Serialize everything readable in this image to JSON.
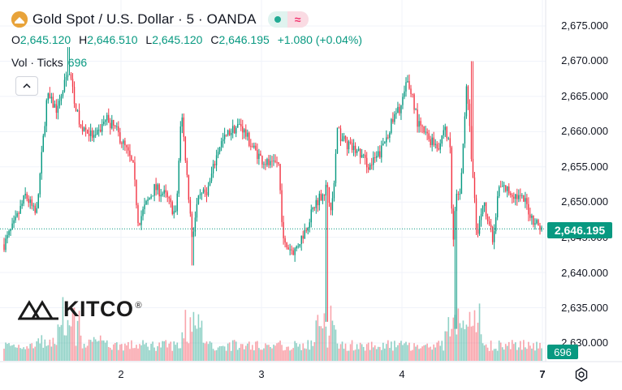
{
  "header": {
    "title": "Gold Spot / U.S. Dollar · 5 · OANDA",
    "ohlc": {
      "open_label": "O",
      "open": "2,645.120",
      "high_label": "H",
      "high": "2,646.510",
      "low_label": "L",
      "low": "2,645.120",
      "close_label": "C",
      "close": "2,646.195",
      "change": "+1.080 (+0.04%)"
    },
    "volume": {
      "label": "Vol · Ticks",
      "value": "696"
    }
  },
  "logo": {
    "text": "KITCO",
    "registered": "®"
  },
  "icons": [
    "gold-coin-icon",
    "collapse-up-icon",
    "settings-icon",
    "kitco-logo-icon"
  ],
  "colors": {
    "up": "#089981",
    "down": "#f23645",
    "bg": "#ffffff",
    "grid": "#f0f3fa"
  },
  "chart_data": {
    "type": "candlestick",
    "x_ticks": [
      "2",
      "3",
      "4",
      "7"
    ],
    "y_ticks": [
      "2,675.000",
      "2,670.000",
      "2,665.000",
      "2,660.000",
      "2,655.000",
      "2,650.000",
      "2,645.000",
      "2,640.000",
      "2,635.000",
      "2,630.000"
    ],
    "ylim": [
      2628,
      2677
    ],
    "last_price": "2,646.195",
    "last_volume": "696",
    "price_path": [
      [
        0,
        2644.0
      ],
      [
        0.02,
        2647.0
      ],
      [
        0.04,
        2651.0
      ],
      [
        0.06,
        2648.0
      ],
      [
        0.08,
        2665.0
      ],
      [
        0.1,
        2663.0
      ],
      [
        0.12,
        2669.0
      ],
      [
        0.14,
        2661.0
      ],
      [
        0.17,
        2659.0
      ],
      [
        0.19,
        2662.0
      ],
      [
        0.21,
        2660.0
      ],
      [
        0.23,
        2657.0
      ],
      [
        0.24,
        2655.0
      ],
      [
        0.25,
        2647.0
      ],
      [
        0.26,
        2649.0
      ],
      [
        0.28,
        2652.0
      ],
      [
        0.3,
        2651.0
      ],
      [
        0.32,
        2648.0
      ],
      [
        0.33,
        2663.0
      ],
      [
        0.34,
        2654.0
      ],
      [
        0.35,
        2645.0
      ],
      [
        0.36,
        2650.0
      ],
      [
        0.38,
        2652.0
      ],
      [
        0.4,
        2658.0
      ],
      [
        0.42,
        2660.0
      ],
      [
        0.44,
        2661.0
      ],
      [
        0.46,
        2658.0
      ],
      [
        0.48,
        2656.0
      ],
      [
        0.5,
        2655.0
      ],
      [
        0.51,
        2656.0
      ],
      [
        0.52,
        2644.0
      ],
      [
        0.54,
        2643.0
      ],
      [
        0.56,
        2646.0
      ],
      [
        0.58,
        2650.0
      ],
      [
        0.6,
        2652.0
      ],
      [
        0.61,
        2649.0
      ],
      [
        0.62,
        2660.0
      ],
      [
        0.64,
        2658.0
      ],
      [
        0.66,
        2657.0
      ],
      [
        0.68,
        2655.0
      ],
      [
        0.7,
        2657.0
      ],
      [
        0.72,
        2661.0
      ],
      [
        0.74,
        2664.0
      ],
      [
        0.75,
        2667.0
      ],
      [
        0.76,
        2665.0
      ],
      [
        0.77,
        2661.0
      ],
      [
        0.79,
        2659.0
      ],
      [
        0.81,
        2658.0
      ],
      [
        0.82,
        2661.0
      ],
      [
        0.83,
        2657.0
      ],
      [
        0.835,
        2643.0
      ],
      [
        0.84,
        2650.0
      ],
      [
        0.85,
        2652.0
      ],
      [
        0.86,
        2667.0
      ],
      [
        0.87,
        2656.0
      ],
      [
        0.88,
        2645.0
      ],
      [
        0.89,
        2650.0
      ],
      [
        0.9,
        2648.0
      ],
      [
        0.91,
        2644.0
      ],
      [
        0.92,
        2652.0
      ],
      [
        0.93,
        2652.0
      ],
      [
        0.95,
        2651.0
      ],
      [
        0.97,
        2650.0
      ],
      [
        0.98,
        2648.0
      ],
      [
        1.0,
        2646.2
      ]
    ],
    "spikes": [
      [
        0.12,
        2672.0
      ],
      [
        0.35,
        2641.0
      ],
      [
        0.6,
        2633.0
      ],
      [
        0.84,
        2632.0
      ],
      [
        0.87,
        2670.0
      ]
    ]
  }
}
